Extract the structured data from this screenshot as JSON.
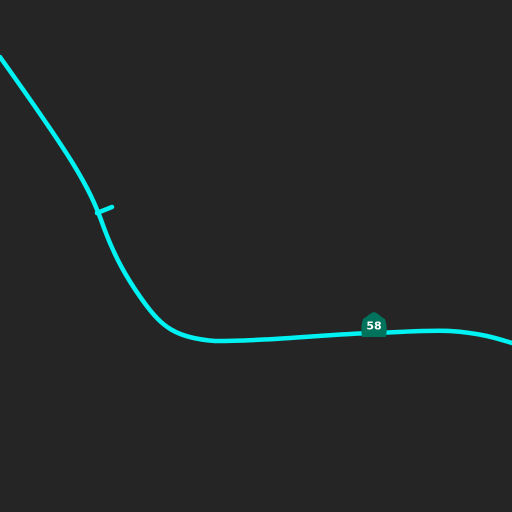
{
  "map": {
    "background_color": "#252525",
    "road": {
      "class": "state-highway",
      "color": "#00f2f2"
    },
    "ramp_stub": {
      "color": "#00f2f2"
    },
    "route_shield": {
      "number": "58",
      "shape": "california-state-route-shield",
      "fill_color": "#00735c",
      "text_color": "#ffffff"
    }
  }
}
